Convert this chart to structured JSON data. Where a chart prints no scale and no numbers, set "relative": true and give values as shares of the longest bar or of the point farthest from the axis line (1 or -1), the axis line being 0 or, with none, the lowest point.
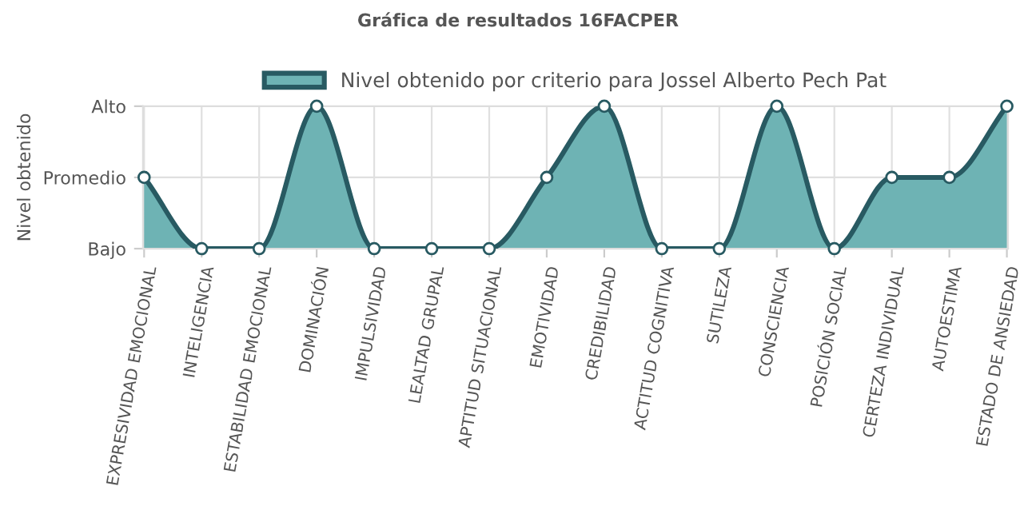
{
  "chart_data": {
    "type": "area",
    "title": "Gráfica de resultados 16FACPER",
    "ylabel": "Nivel obtenido",
    "relative": true,
    "categories": [
      "EXPRESIVIDAD EMOCIONAL",
      "INTELIGENCIA",
      "ESTABILIDAD EMOCIONAL",
      "DOMINACIÓN",
      "IMPULSIVIDAD",
      "LEALTAD GRUPAL",
      "APTITUD SITUACIONAL",
      "EMOTIVIDAD",
      "CREDIBILIDAD",
      "ACTITUD COGNITIVA",
      "SUTILEZA",
      "CONSCIENCIA",
      "POSICIÓN SOCIAL",
      "CERTEZA INDIVIDUAL",
      "AUTOESTIMA",
      "ESTADO DE ANSIEDAD"
    ],
    "series": [
      {
        "name": "Nivel obtenido por criterio para Jossel Alberto Pech Pat",
        "color": "#285a62",
        "values": [
          0.5,
          0,
          0,
          1,
          0,
          0,
          0,
          0.5,
          1,
          0,
          0,
          1,
          0,
          0.5,
          0.5,
          1
        ]
      }
    ],
    "annotations": [
      "Bajo",
      "Promedio",
      "Alto"
    ],
    "grid": true,
    "legend": "top",
    "marker": "circle"
  }
}
